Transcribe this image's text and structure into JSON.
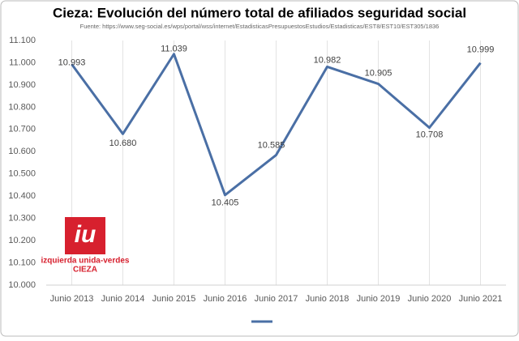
{
  "chart_data": {
    "type": "line",
    "title": "Cieza: Evolución del número total de afiliados seguridad social",
    "subtitle": "Fuente: https://www.seg-social.es/wps/portal/wss/internet/EstadisticasPresupuestosEstudios/Estadisticas/EST8/EST10/EST305/1836",
    "categories": [
      "Junio 2013",
      "Junio 2014",
      "Junio 2015",
      "Junio 2016",
      "Junio 2017",
      "Junio 2018",
      "Junio 2019",
      "Junio 2020",
      "Junio 2021"
    ],
    "series": [
      {
        "color": "#4a6fa5",
        "values": [
          10993,
          10680,
          11039,
          10405,
          10585,
          10982,
          10905,
          10708,
          10999
        ],
        "value_labels": [
          "10.993",
          "10.680",
          "11.039",
          "10.405",
          "10.585",
          "10.982",
          "10.905",
          "10.708",
          "10.999"
        ]
      }
    ],
    "ylim": [
      10000,
      11100
    ],
    "yticks": [
      {
        "value": 10000,
        "label": "10.000"
      },
      {
        "value": 10100,
        "label": "10.100"
      },
      {
        "value": 10200,
        "label": "10.200"
      },
      {
        "value": 10300,
        "label": "10.300"
      },
      {
        "value": 10400,
        "label": "10.400"
      },
      {
        "value": 10500,
        "label": "10.500"
      },
      {
        "value": 10600,
        "label": "10.600"
      },
      {
        "value": 10700,
        "label": "10.700"
      },
      {
        "value": 10800,
        "label": "10.800"
      },
      {
        "value": 10900,
        "label": "10.900"
      },
      {
        "value": 11000,
        "label": "11.000"
      },
      {
        "value": 11100,
        "label": "11.100"
      }
    ],
    "grid": true,
    "logo": {
      "mark": "iu",
      "line1": "izquierda unida-verdes",
      "line2": "CIEZA"
    }
  }
}
